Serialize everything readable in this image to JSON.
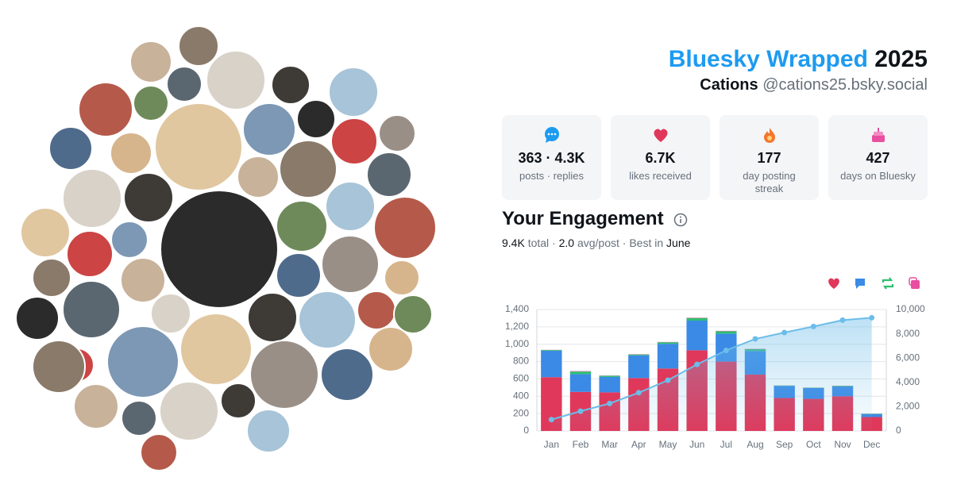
{
  "header": {
    "title_brand": "Bluesky Wrapped",
    "title_year": "2025",
    "name": "Cations",
    "handle": "@cations25.bsky.social"
  },
  "stats": [
    {
      "value": "363 · 4.3K",
      "label": "posts · replies"
    },
    {
      "value": "6.7K",
      "label": "likes received"
    },
    {
      "value": "177",
      "label": "day posting streak"
    },
    {
      "value": "427",
      "label": "days on Bluesky"
    }
  ],
  "engagement": {
    "title": "Your Engagement",
    "total": "9.4K",
    "total_label": "total ·",
    "avg": "2.0",
    "avg_label": "avg/post · Best in",
    "best": "June"
  },
  "chart_data": {
    "type": "bar",
    "categories": [
      "Jan",
      "Feb",
      "Mar",
      "Apr",
      "May",
      "Jun",
      "Jul",
      "Aug",
      "Sep",
      "Oct",
      "Nov",
      "Dec"
    ],
    "series": [
      {
        "color": "#e0385a",
        "values": [
          620,
          450,
          445,
          610,
          720,
          930,
          800,
          650,
          380,
          370,
          400,
          160
        ]
      },
      {
        "color": "#3b8ae6",
        "values": [
          305,
          205,
          178,
          262,
          285,
          342,
          322,
          272,
          140,
          125,
          112,
          35
        ]
      },
      {
        "color": "#2fbf71",
        "values": [
          8,
          30,
          14,
          10,
          18,
          30,
          28,
          22,
          4,
          4,
          8,
          4
        ]
      },
      {
        "color": "#e84fa0",
        "values": [
          2,
          5,
          2,
          3,
          3,
          4,
          4,
          3,
          1,
          1,
          2,
          1
        ]
      },
      {
        "type": "line",
        "axis": "y2",
        "color": "#6cbde9",
        "values": [
          935,
          1625,
          2265,
          3150,
          4175,
          5480,
          6635,
          7580,
          8105,
          8605,
          9125,
          9325
        ]
      }
    ],
    "ylim": [
      0,
      1400
    ],
    "yticks": [
      0,
      200,
      400,
      600,
      800,
      {
        "value": 1000,
        "label": "1,000"
      },
      {
        "value": 1200,
        "label": "1,200"
      },
      {
        "value": 1400,
        "label": "1,400"
      }
    ],
    "y2lim": [
      0,
      10000
    ],
    "y2ticks": [
      0,
      {
        "value": 2000,
        "label": "2,000"
      },
      {
        "value": 4000,
        "label": "4,000"
      },
      {
        "value": 6000,
        "label": "6,000"
      },
      {
        "value": 8000,
        "label": "8,000"
      },
      {
        "value": 10000,
        "label": "10,000"
      }
    ],
    "grid": true
  }
}
